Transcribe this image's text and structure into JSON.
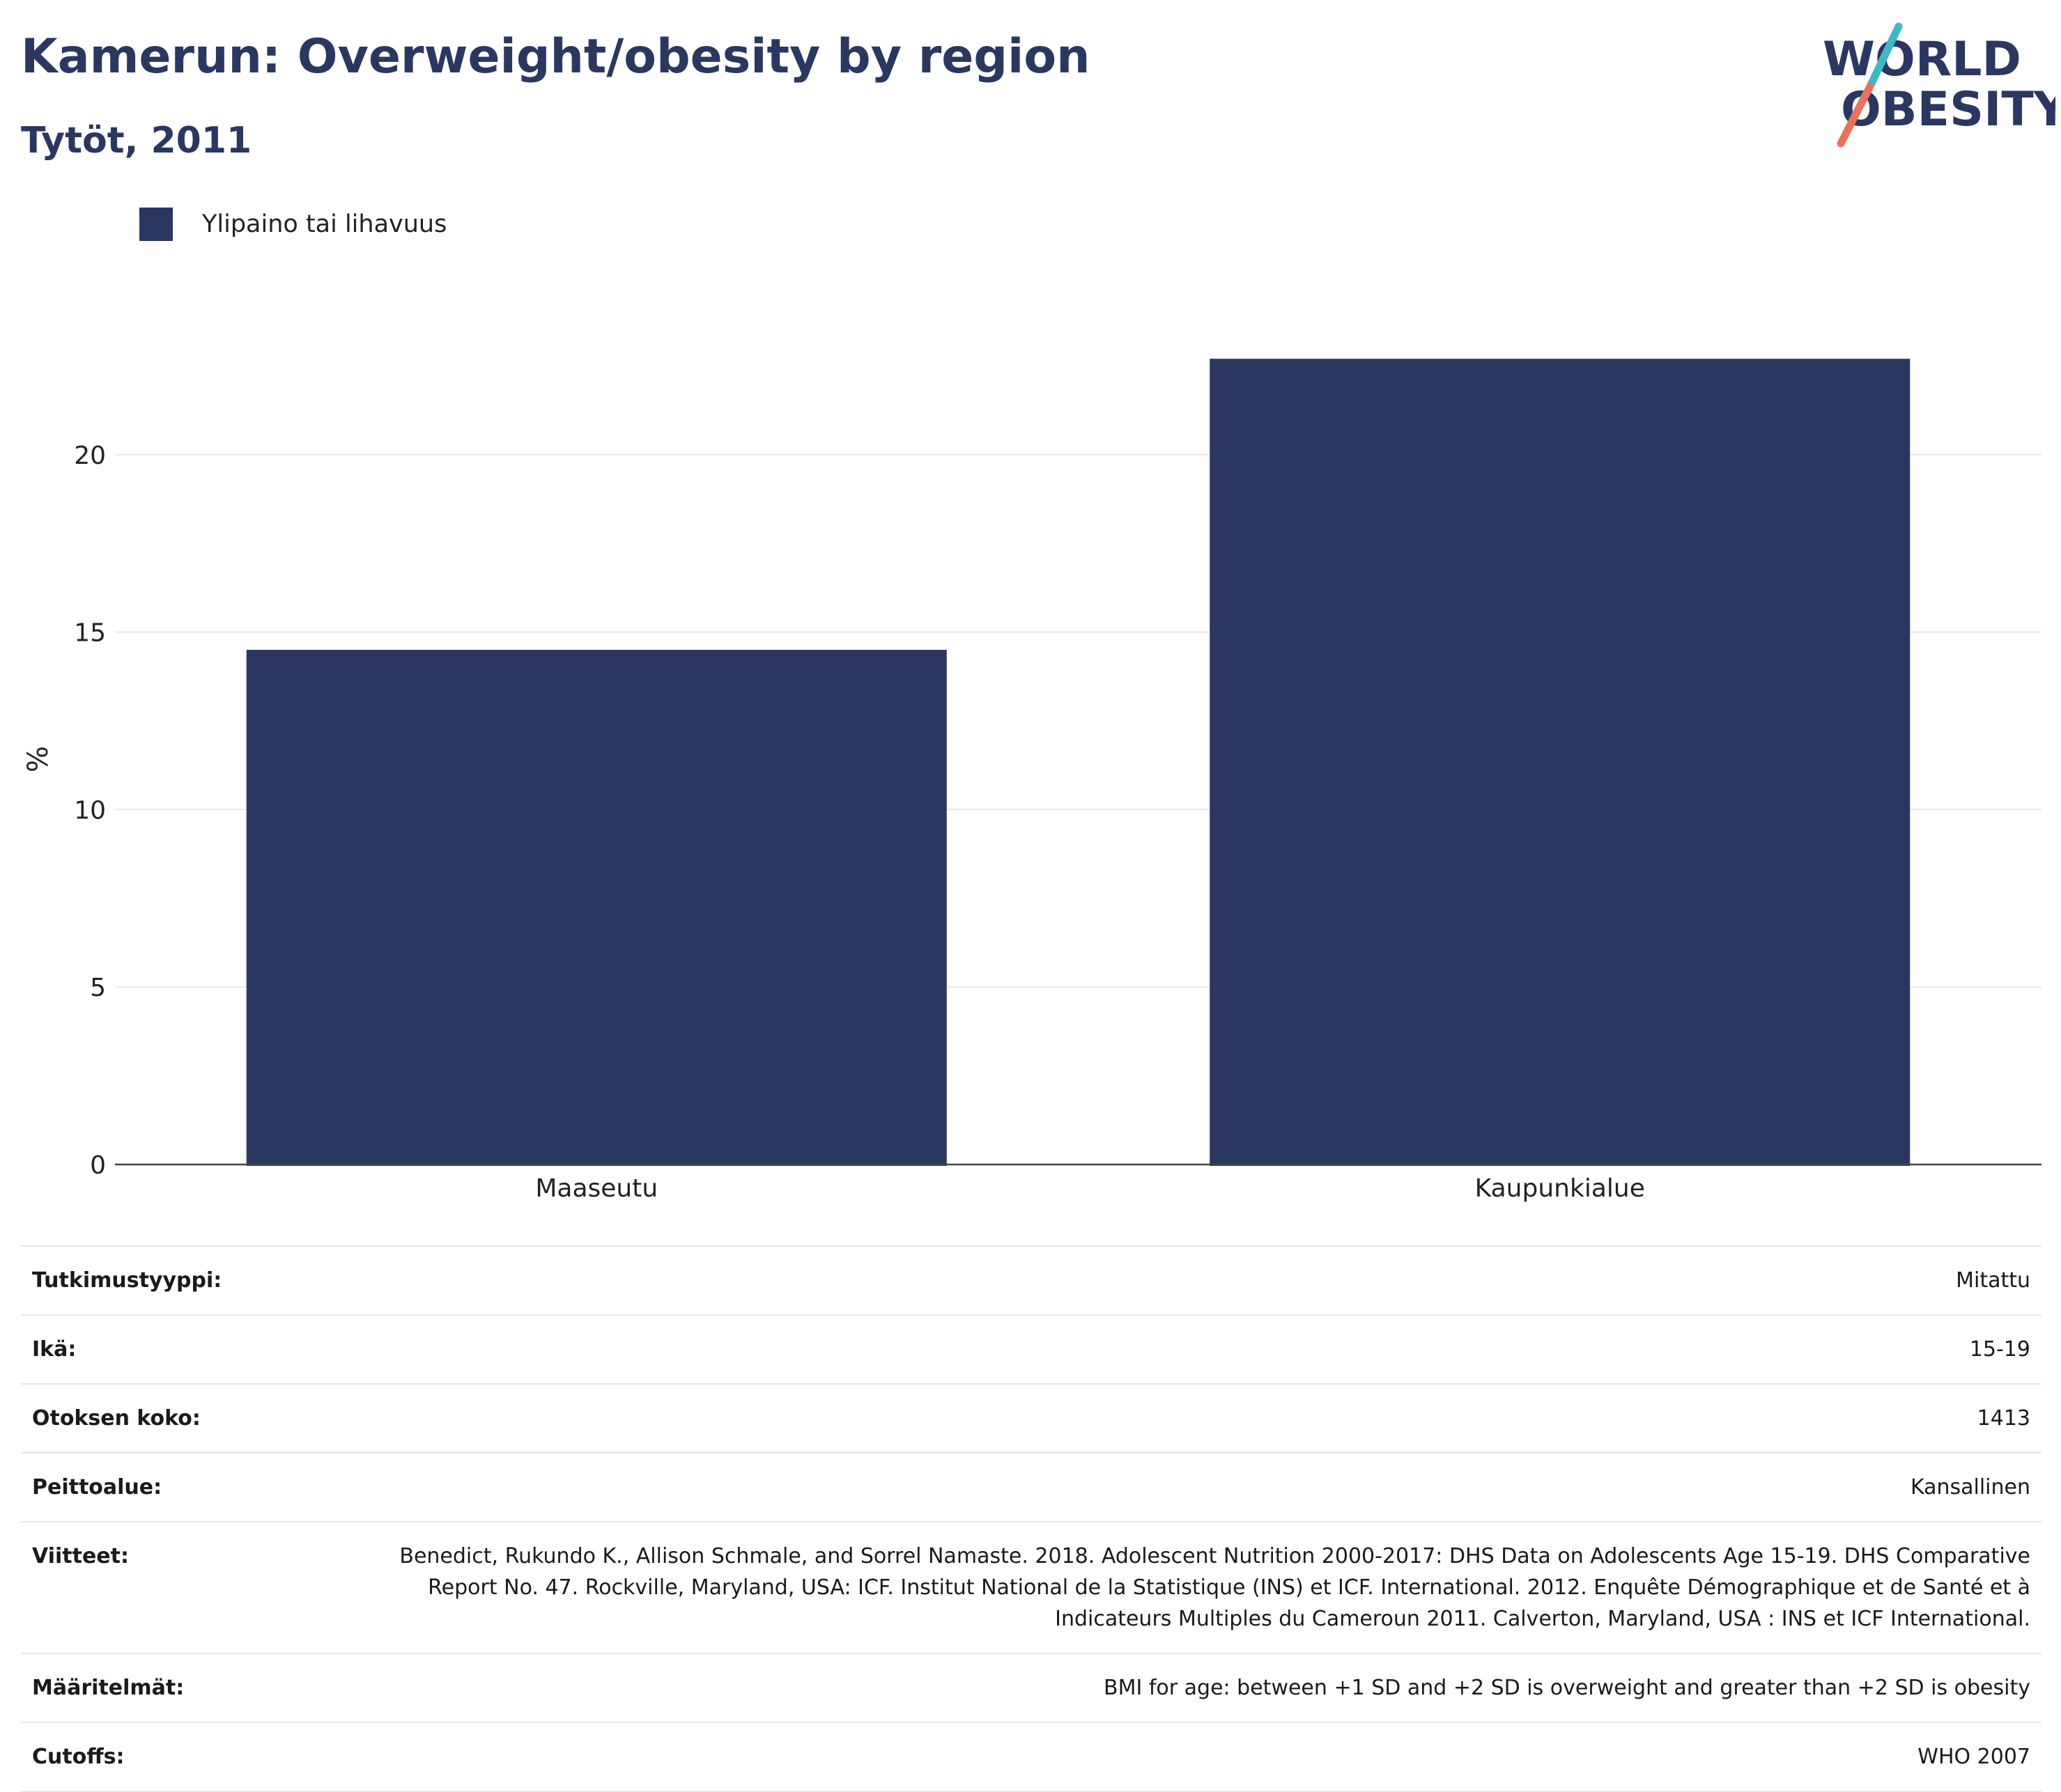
{
  "header": {
    "title": "Kamerun: Overweight/obesity by region",
    "subtitle": "Tytöt, 2011"
  },
  "logo": {
    "line1": "WORLD",
    "line2": "OBESITY",
    "colors": {
      "text": "#2a3761",
      "slash_top": "#3fb8c4",
      "slash_bottom": "#e8735a"
    }
  },
  "legend": {
    "label": "Ylipaino tai lihavuus",
    "color": "#2a3761"
  },
  "chart_data": {
    "type": "bar",
    "categories": [
      "Maaseutu",
      "Kaupunkialue"
    ],
    "series": [
      {
        "name": "Ylipaino tai lihavuus",
        "values": [
          14.5,
          22.7
        ],
        "color": "#2a3761"
      }
    ],
    "ylabel": "%",
    "xlabel": "",
    "yticks": [
      0,
      5,
      10,
      15,
      20
    ],
    "ylim": [
      0,
      23.9
    ],
    "grid": true,
    "legend_position": "top-left"
  },
  "meta": [
    {
      "key": "Tutkimustyyppi:",
      "value": "Mitattu"
    },
    {
      "key": "Ikä:",
      "value": "15-19"
    },
    {
      "key": "Otoksen koko:",
      "value": "1413"
    },
    {
      "key": "Peittoalue:",
      "value": "Kansallinen"
    },
    {
      "key": "Viitteet:",
      "value": "Benedict, Rukundo K., Allison Schmale, and Sorrel Namaste. 2018. Adolescent Nutrition 2000-2017: DHS Data on Adolescents Age 15-19. DHS Comparative Report No. 47. Rockville, Maryland, USA: ICF. Institut National de la Statistique (INS) et ICF. International. 2012. Enquête Démographique et de Santé et à Indicateurs Multiples du Cameroun 2011. Calverton, Maryland, USA : INS et ICF International."
    },
    {
      "key": "Määritelmät:",
      "value": "BMI for age: between +1 SD and +2 SD is overweight and greater than +2 SD is obesity"
    },
    {
      "key": "Cutoffs:",
      "value": "WHO 2007"
    }
  ]
}
